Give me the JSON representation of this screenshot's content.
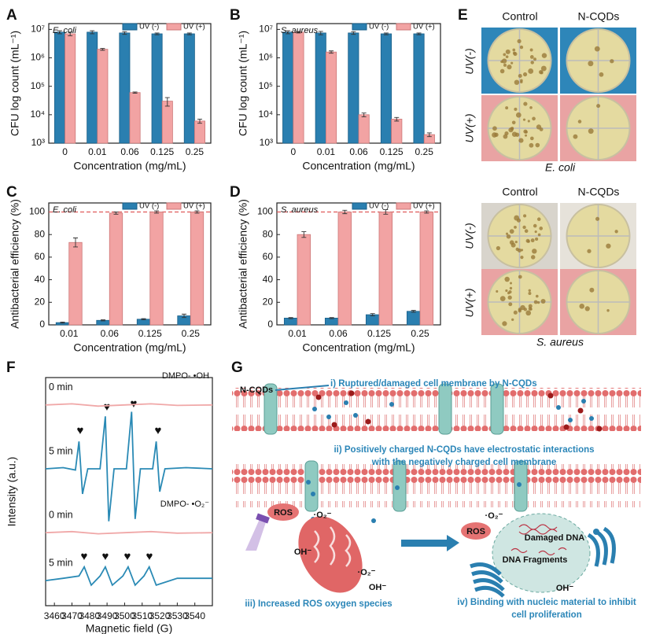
{
  "chart_data": [
    {
      "type": "bar",
      "panel": "A",
      "annotation": "E. coli",
      "categories": [
        "0",
        "0.01",
        "0.06",
        "0.125",
        "0.25"
      ],
      "series": [
        {
          "name": "UV (-)",
          "color": "#2a7fb0",
          "values": [
            8000000,
            8000000,
            7500000,
            7000000,
            7000000
          ],
          "errors": [
            1000000,
            1000000,
            800000,
            500000,
            500000
          ]
        },
        {
          "name": "UV (+)",
          "color": "#f2a3a3",
          "values": [
            7000000,
            2000000,
            60000,
            30000,
            6000
          ],
          "errors": [
            1000000,
            150000,
            3000,
            10000,
            1000
          ]
        }
      ],
      "log_y": true,
      "ylim": [
        1000,
        16000000
      ],
      "yticks": [
        {
          "value": 1000,
          "label": "10³"
        },
        {
          "value": 10000,
          "label": "10⁴"
        },
        {
          "value": 100000,
          "label": "10⁵"
        },
        {
          "value": 1000000,
          "label": "10⁶"
        },
        {
          "value": 10000000,
          "label": "10⁷"
        }
      ],
      "ylabel": "CFU log count (mL⁻¹)",
      "xlabel": "Concentration (mg/mL)",
      "legend": "upper right"
    },
    {
      "type": "bar",
      "panel": "B",
      "annotation": "S. aureus",
      "categories": [
        "0",
        "0.01",
        "0.06",
        "0.125",
        "0.25"
      ],
      "series": [
        {
          "name": "UV (-)",
          "color": "#2a7fb0",
          "values": [
            8000000,
            7500000,
            7500000,
            7000000,
            7000000
          ],
          "errors": [
            1000000,
            1000000,
            800000,
            500000,
            500000
          ]
        },
        {
          "name": "UV (+)",
          "color": "#f2a3a3",
          "values": [
            8000000,
            1600000,
            10000,
            7000,
            2000
          ],
          "errors": [
            500000,
            150000,
            1500,
            1000,
            300
          ]
        }
      ],
      "log_y": true,
      "ylim": [
        1000,
        16000000
      ],
      "yticks": [
        {
          "value": 1000,
          "label": "10³"
        },
        {
          "value": 10000,
          "label": "10⁴"
        },
        {
          "value": 100000,
          "label": "10⁵"
        },
        {
          "value": 1000000,
          "label": "10⁶"
        },
        {
          "value": 10000000,
          "label": "10⁷"
        }
      ],
      "ylabel": "CFU log count (mL⁻¹)",
      "xlabel": "Concentration (mg/mL)",
      "legend": "upper right"
    },
    {
      "type": "bar",
      "panel": "C",
      "annotation": "E. coli",
      "categories": [
        "0.01",
        "0.06",
        "0.125",
        "0.25"
      ],
      "series": [
        {
          "name": "UV (-)",
          "color": "#2a7fb0",
          "values": [
            2,
            4,
            5,
            8
          ],
          "errors": [
            0.5,
            0.5,
            0.5,
            1.5
          ]
        },
        {
          "name": "UV (+)",
          "color": "#f2a3a3",
          "values": [
            73,
            99,
            100,
            100
          ],
          "errors": [
            4,
            1,
            1,
            1
          ]
        }
      ],
      "ylim": [
        0,
        108
      ],
      "yticks": [
        0,
        20,
        40,
        60,
        80,
        100
      ],
      "reference_line": 100,
      "ylabel": "Antibacterial efficiency (%)",
      "xlabel": "Concentration (mg/mL)",
      "legend": "upper right"
    },
    {
      "type": "bar",
      "panel": "D",
      "annotation": "S. aureus",
      "categories": [
        "0.01",
        "0.06",
        "0.125",
        "0.25"
      ],
      "series": [
        {
          "name": "UV (-)",
          "color": "#2a7fb0",
          "values": [
            6,
            6,
            9,
            12
          ],
          "errors": [
            0.5,
            0.5,
            1,
            0.8
          ]
        },
        {
          "name": "UV (+)",
          "color": "#f2a3a3",
          "values": [
            80,
            100,
            100,
            100
          ],
          "errors": [
            2.5,
            1.5,
            2,
            1
          ]
        }
      ],
      "ylim": [
        0,
        108
      ],
      "yticks": [
        0,
        20,
        40,
        60,
        80,
        100
      ],
      "reference_line": 100,
      "ylabel": "Antibacterial efficiency (%)",
      "xlabel": "Concentration (mg/mL)",
      "legend": "upper right"
    },
    {
      "type": "line",
      "panel": "F",
      "xlabel": "Magnetic field (G)",
      "ylabel": "Intensity (a.u.)",
      "xlim": [
        3455,
        3550
      ],
      "xticks": [
        3460,
        3470,
        3480,
        3490,
        3500,
        3510,
        3520,
        3530,
        3540
      ],
      "ylim": [
        0,
        10
      ],
      "annotations": [
        "DMPO- •OH",
        "DMPO- •O₂⁻"
      ],
      "series": [
        {
          "name": "0 min",
          "color": "#f0a8a8",
          "x": [
            3455,
            3470,
            3485,
            3500,
            3515,
            3530,
            3550
          ],
          "values": [
            8.8,
            8.85,
            8.75,
            8.8,
            8.85,
            8.78,
            8.8
          ]
        },
        {
          "name": "5 min",
          "color": "#2a8ab5",
          "x": [
            3455,
            3465,
            3472,
            3474,
            3476,
            3479,
            3486,
            3489,
            3491,
            3494,
            3501,
            3504,
            3506,
            3509,
            3516,
            3518,
            3520,
            3523,
            3535,
            3550
          ],
          "values": [
            6,
            6.05,
            5.95,
            7.2,
            4.9,
            6,
            6,
            8.3,
            3.7,
            6,
            6,
            8.5,
            3.8,
            6,
            6,
            7.2,
            5,
            6,
            6.05,
            6
          ]
        },
        {
          "name": "0 min",
          "color": "#f0a8a8",
          "x": [
            3455,
            3470,
            3485,
            3500,
            3515,
            3530,
            3550
          ],
          "values": [
            3.2,
            3.25,
            3.15,
            3.2,
            3.25,
            3.18,
            3.2
          ]
        },
        {
          "name": "5 min",
          "color": "#2a8ab5",
          "x": [
            3455,
            3465,
            3474,
            3477,
            3481,
            3486,
            3489,
            3493,
            3499,
            3502,
            3506,
            3511,
            3514,
            3518,
            3530,
            3550
          ],
          "values": [
            1.1,
            1.2,
            1.3,
            1.7,
            0.9,
            1.3,
            1.7,
            0.9,
            1.3,
            1.7,
            0.9,
            1.3,
            1.7,
            0.9,
            1.2,
            1.2
          ]
        }
      ]
    }
  ],
  "panel_e": {
    "label": "E",
    "columns": [
      "Control",
      "N-CQDs"
    ],
    "rows": [
      "UV(-)",
      "UV(+)"
    ],
    "captions": [
      "E. coli",
      "S. aureus"
    ]
  },
  "panel_g": {
    "label": "G",
    "n_cqds": "N-CQDs",
    "step_i": "i) Ruptured/damaged cell membrane by N-CQDs",
    "step_ii": [
      "ii) Positively charged N-CQDs have electrostatic interactions",
      "with the negatively charged cell membrane"
    ],
    "ros": "ROS",
    "superoxide": "·O₂⁻",
    "hydroxyl": "OH⁻",
    "step_iii": "iii) Increased ROS oxygen species",
    "damaged_dna": "Damaged DNA",
    "dna_fragments": "DNA Fragments",
    "step_iv": [
      "iv) Binding with nucleic material to inhibit",
      "cell proliferation"
    ]
  }
}
